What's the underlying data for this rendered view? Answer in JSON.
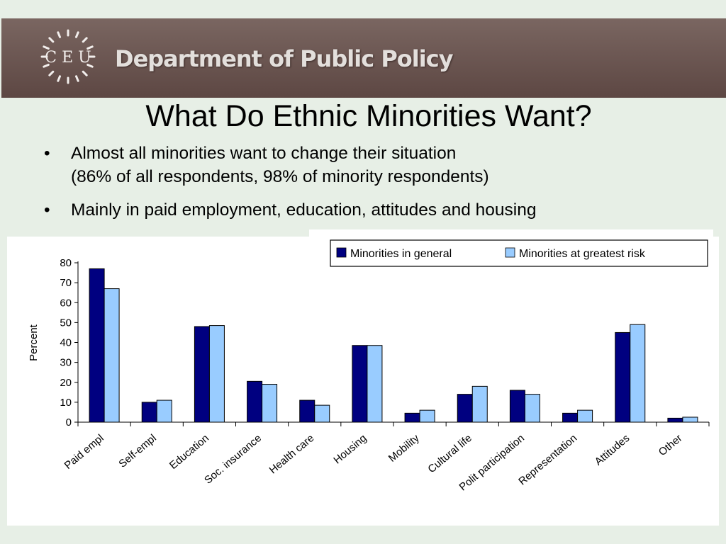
{
  "header": {
    "logo_text": "C E U",
    "department": "Department of Public Policy"
  },
  "slide": {
    "title": "What Do Ethnic Minorities Want?",
    "bullets": [
      {
        "marker": "•",
        "lines": [
          "Almost all minorities want to change their situation",
          "(86% of all respondents, 98% of minority respondents)"
        ]
      },
      {
        "marker": "•",
        "lines": [
          "Mainly in paid employment, education, attitudes and housing"
        ]
      }
    ]
  },
  "colors": {
    "banner": "#6b5550",
    "background": "#e7efe6",
    "series_general": "#000080",
    "series_risk": "#99ccff"
  },
  "chart_data": {
    "type": "bar",
    "title": "",
    "xlabel": "",
    "ylabel": "Percent",
    "ylim": [
      0,
      80
    ],
    "yticks": [
      0,
      10,
      20,
      30,
      40,
      50,
      60,
      70,
      80
    ],
    "grid": false,
    "legend_position": "top-right",
    "categories": [
      "Paid empl",
      "Self-empl",
      "Education",
      "Soc. insurance",
      "Health care",
      "Housing",
      "Mobility",
      "Cultural life",
      "Polit participation",
      "Representation",
      "Attitudes",
      "Other"
    ],
    "series": [
      {
        "name": "Minorities in general",
        "color": "#000080",
        "values": [
          77,
          10,
          48,
          20.5,
          11,
          38.5,
          4.5,
          14,
          16,
          4.5,
          45,
          2
        ]
      },
      {
        "name": "Minorities at greatest risk",
        "color": "#99ccff",
        "values": [
          67,
          11,
          48.5,
          19,
          8.5,
          38.5,
          6,
          18,
          14,
          6,
          49,
          2.5
        ]
      }
    ]
  }
}
